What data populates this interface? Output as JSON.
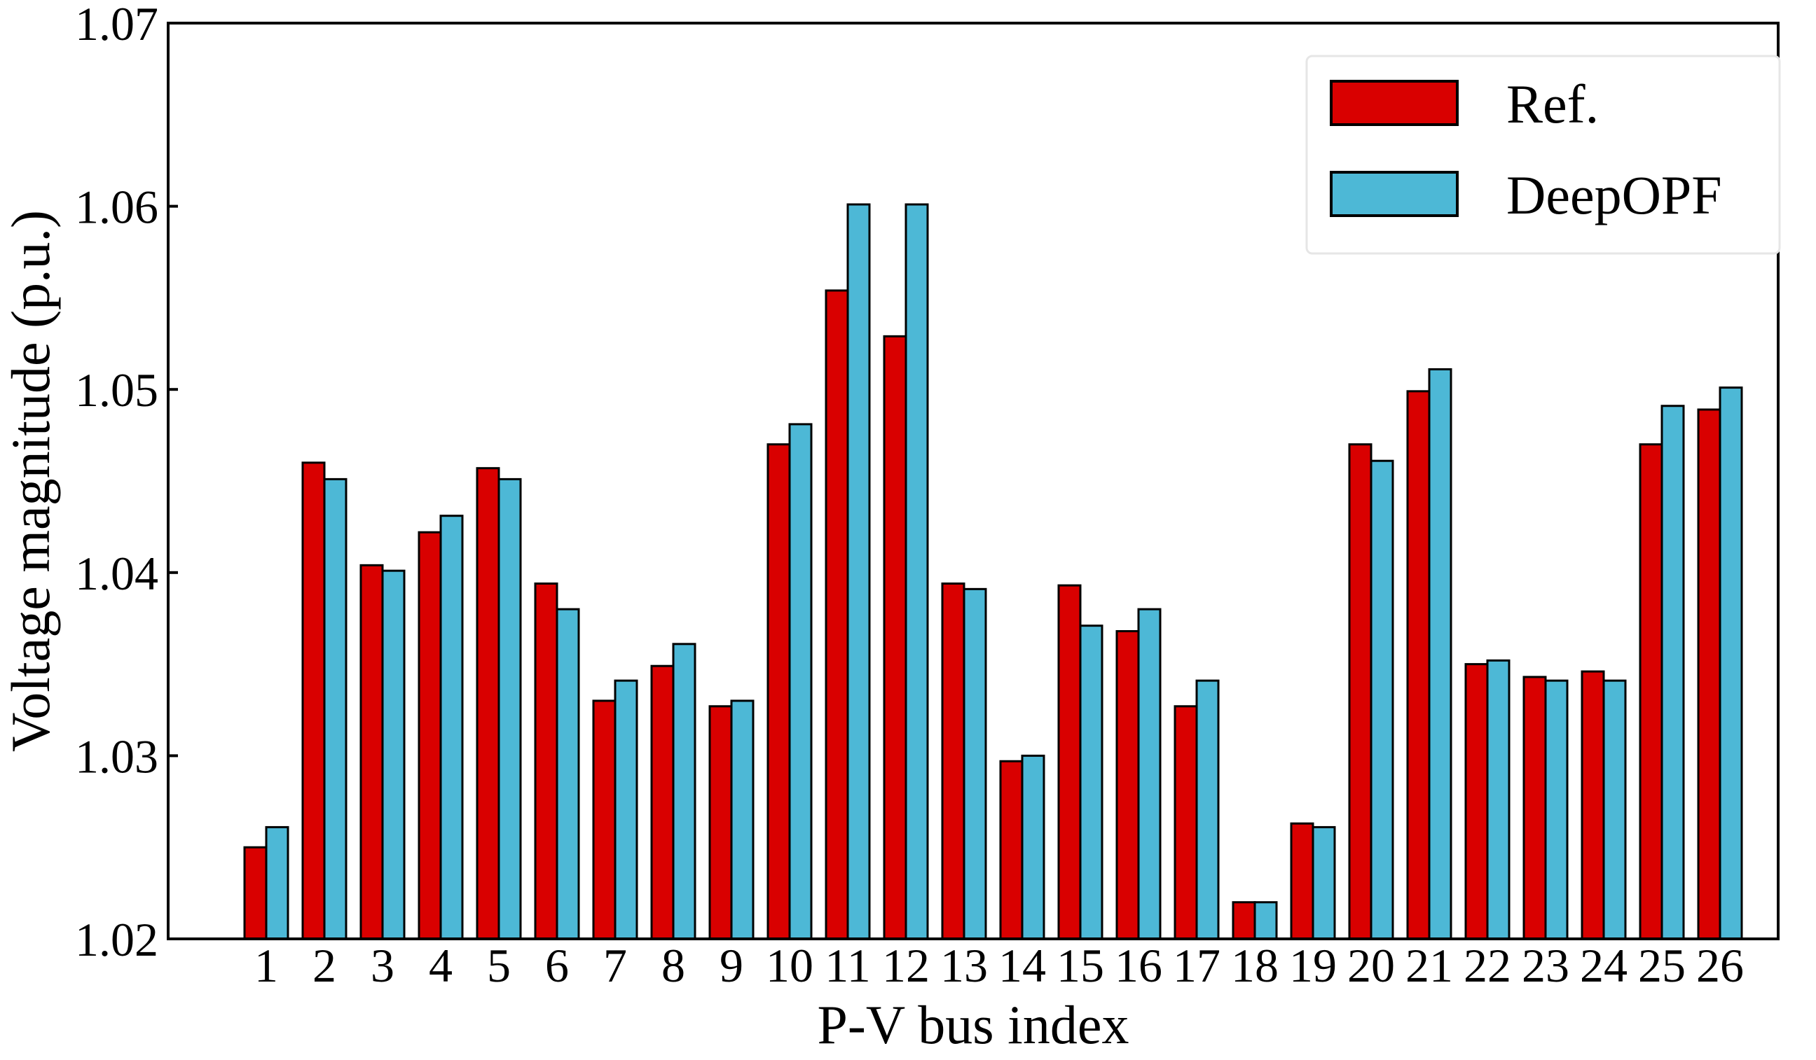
{
  "chart_data": {
    "type": "bar",
    "title": "",
    "xlabel": "P-V bus index",
    "ylabel": "Voltage magnitude (p.u.)",
    "ylim": [
      1.02,
      1.07
    ],
    "yticks": [
      "1.02",
      "1.03",
      "1.04",
      "1.05",
      "1.06",
      "1.07"
    ],
    "grid": false,
    "legend_position": "top-right",
    "categories": [
      "1",
      "2",
      "3",
      "4",
      "5",
      "6",
      "7",
      "8",
      "9",
      "10",
      "11",
      "12",
      "13",
      "14",
      "15",
      "16",
      "17",
      "18",
      "19",
      "20",
      "21",
      "22",
      "23",
      "24",
      "25",
      "26"
    ],
    "series": [
      {
        "name": "Ref.",
        "color": "#d90000",
        "values": [
          1.025,
          1.046,
          1.0404,
          1.0422,
          1.0457,
          1.0394,
          1.033,
          1.0349,
          1.0327,
          1.047,
          1.0554,
          1.0529,
          1.0394,
          1.0297,
          1.0393,
          1.0368,
          1.0327,
          1.022,
          1.0263,
          1.047,
          1.0499,
          1.035,
          1.0343,
          1.0346,
          1.047,
          1.0489
        ]
      },
      {
        "name": "DeepOPF",
        "color": "#4db8d6",
        "values": [
          1.0261,
          1.0451,
          1.0401,
          1.0431,
          1.0451,
          1.038,
          1.0341,
          1.0361,
          1.033,
          1.0481,
          1.0601,
          1.0601,
          1.0391,
          1.03,
          1.0371,
          1.038,
          1.0341,
          1.022,
          1.0261,
          1.0461,
          1.0511,
          1.0352,
          1.0341,
          1.0341,
          1.0491,
          1.0501
        ]
      }
    ]
  }
}
